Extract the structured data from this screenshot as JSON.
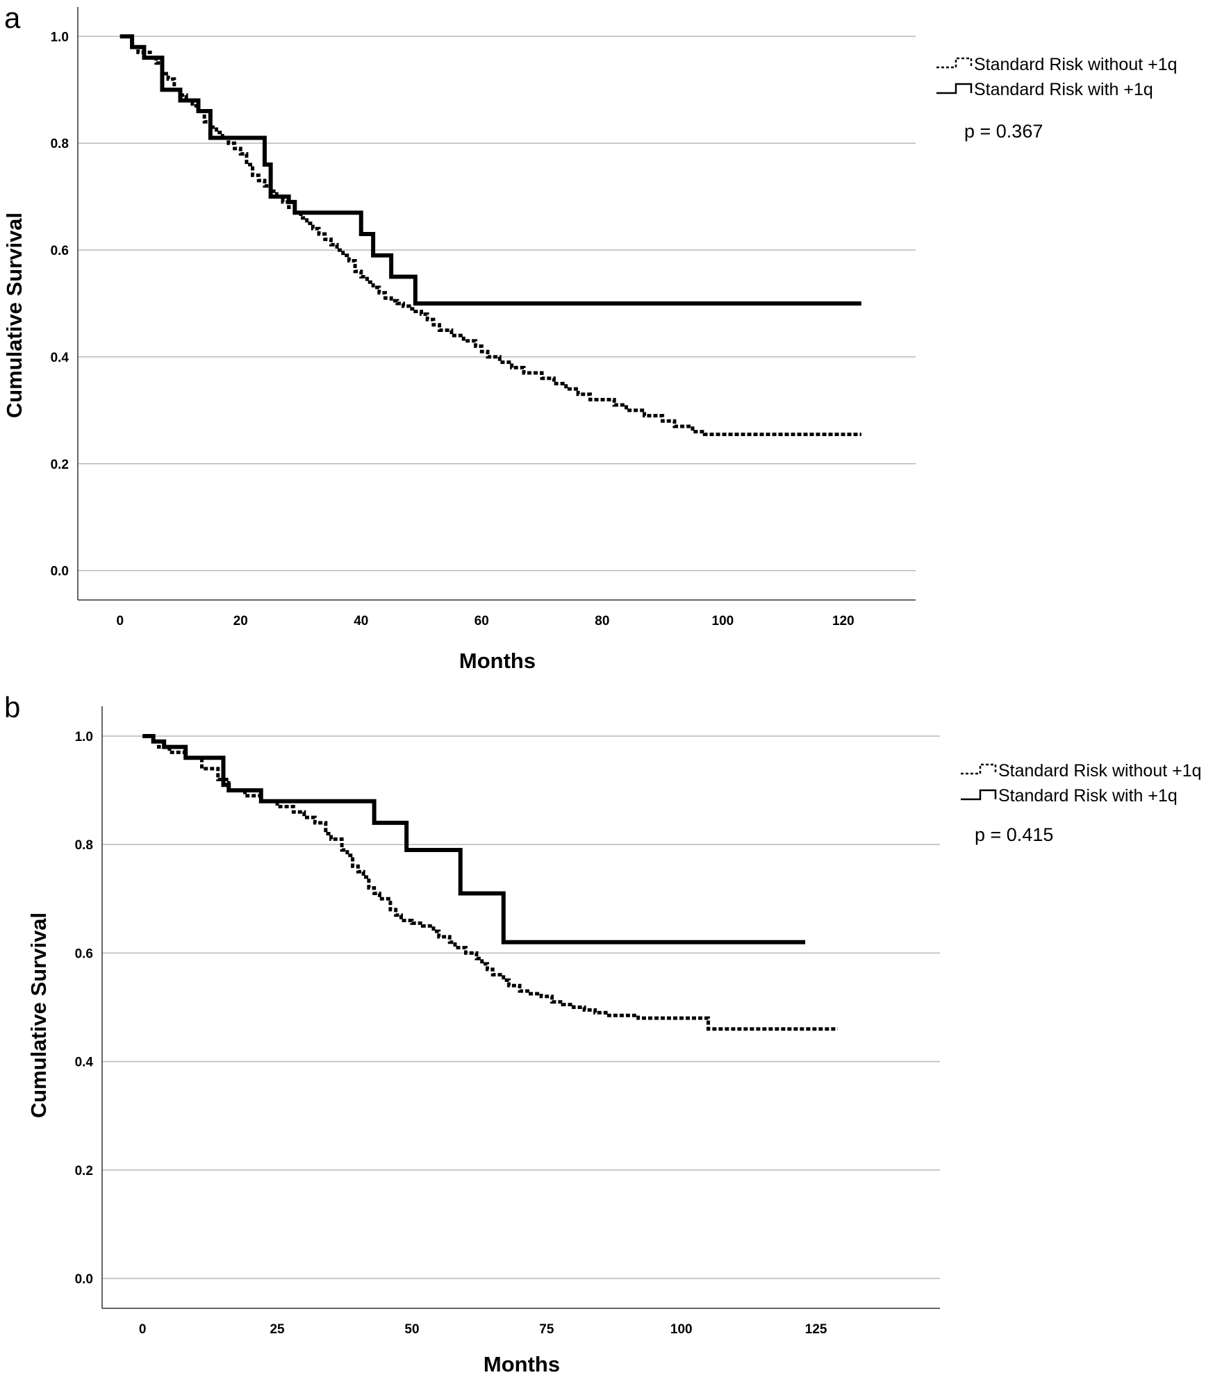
{
  "chart_data": [
    {
      "panel": "a",
      "type": "line",
      "xlabel": "Months",
      "ylabel": "Cumulative Survival",
      "xlim": [
        -7,
        132
      ],
      "ylim": [
        -0.055,
        1.055
      ],
      "xticks": [
        0,
        20,
        40,
        60,
        80,
        100,
        120
      ],
      "yticks": [
        0.0,
        0.2,
        0.4,
        0.6,
        0.8,
        1.0
      ],
      "ytick_labels": [
        "0.0",
        "0.2",
        "0.4",
        "0.6",
        "0.8",
        "1.0"
      ],
      "grid": "horizontal",
      "legend_position": "top-right outside plot",
      "annotation": "p = 0.367",
      "series": [
        {
          "name": "Standard Risk without +1q",
          "style": "dashed",
          "x": [
            0,
            2,
            3,
            5,
            6,
            7,
            8,
            9,
            10,
            11,
            12,
            13,
            14,
            15,
            16,
            17,
            18,
            19,
            20,
            21,
            22,
            23,
            24,
            25,
            26,
            27,
            28,
            29,
            30,
            31,
            32,
            33,
            34,
            35,
            36,
            37,
            38,
            39,
            40,
            41,
            42,
            43,
            44,
            45,
            46,
            47,
            48,
            49,
            50,
            51,
            52,
            53,
            55,
            57,
            59,
            60,
            61,
            63,
            65,
            67,
            70,
            72,
            74,
            76,
            78,
            82,
            84,
            87,
            90,
            92,
            95,
            97,
            123
          ],
          "y": [
            1.0,
            0.98,
            0.97,
            0.96,
            0.95,
            0.93,
            0.92,
            0.9,
            0.89,
            0.88,
            0.87,
            0.86,
            0.84,
            0.83,
            0.82,
            0.81,
            0.8,
            0.79,
            0.78,
            0.76,
            0.74,
            0.73,
            0.72,
            0.71,
            0.7,
            0.69,
            0.68,
            0.67,
            0.66,
            0.65,
            0.64,
            0.63,
            0.62,
            0.61,
            0.6,
            0.59,
            0.58,
            0.56,
            0.55,
            0.54,
            0.53,
            0.52,
            0.51,
            0.505,
            0.5,
            0.495,
            0.49,
            0.485,
            0.48,
            0.47,
            0.46,
            0.45,
            0.44,
            0.43,
            0.42,
            0.41,
            0.4,
            0.39,
            0.38,
            0.37,
            0.36,
            0.35,
            0.34,
            0.33,
            0.32,
            0.31,
            0.3,
            0.29,
            0.28,
            0.27,
            0.26,
            0.255,
            0.255
          ]
        },
        {
          "name": "Standard Risk with +1q",
          "style": "solid",
          "x": [
            0,
            2,
            4,
            7,
            10,
            13,
            15,
            23,
            24,
            25,
            28,
            29,
            39,
            40,
            42,
            45,
            49,
            123
          ],
          "y": [
            1.0,
            0.98,
            0.96,
            0.9,
            0.88,
            0.86,
            0.81,
            0.81,
            0.76,
            0.7,
            0.69,
            0.67,
            0.67,
            0.63,
            0.59,
            0.55,
            0.5,
            0.5
          ]
        }
      ]
    },
    {
      "panel": "b",
      "type": "line",
      "xlabel": "Months",
      "ylabel": "Cumulative Survival",
      "xlim": [
        -7.5,
        148
      ],
      "ylim": [
        -0.055,
        1.055
      ],
      "xticks": [
        0,
        25,
        50,
        75,
        100,
        125
      ],
      "yticks": [
        0.0,
        0.2,
        0.4,
        0.6,
        0.8,
        1.0
      ],
      "ytick_labels": [
        "0.0",
        "0.2",
        "0.4",
        "0.6",
        "0.8",
        "1.0"
      ],
      "grid": "horizontal",
      "legend_position": "top-right outside plot",
      "annotation": "p = 0.415",
      "series": [
        {
          "name": "Standard Risk without +1q",
          "style": "dashed",
          "x": [
            0,
            2,
            3,
            5,
            8,
            11,
            14,
            16,
            19,
            22,
            25,
            28,
            30,
            32,
            34,
            35,
            37,
            38,
            39,
            40,
            41,
            42,
            43,
            44,
            46,
            47,
            48,
            50,
            52,
            54,
            55,
            57,
            58,
            60,
            62,
            63,
            64,
            65,
            67,
            68,
            70,
            72,
            74,
            76,
            78,
            80,
            82,
            84,
            86,
            88,
            92,
            94,
            105,
            129
          ],
          "y": [
            1.0,
            0.99,
            0.98,
            0.97,
            0.96,
            0.94,
            0.92,
            0.9,
            0.89,
            0.88,
            0.87,
            0.86,
            0.85,
            0.84,
            0.82,
            0.81,
            0.79,
            0.78,
            0.76,
            0.75,
            0.74,
            0.72,
            0.71,
            0.7,
            0.68,
            0.67,
            0.66,
            0.655,
            0.65,
            0.64,
            0.63,
            0.62,
            0.61,
            0.6,
            0.59,
            0.58,
            0.57,
            0.56,
            0.55,
            0.54,
            0.53,
            0.525,
            0.52,
            0.51,
            0.505,
            0.5,
            0.495,
            0.49,
            0.485,
            0.485,
            0.48,
            0.48,
            0.46,
            0.46
          ]
        },
        {
          "name": "Standard Risk with +1q",
          "style": "solid",
          "x": [
            0,
            2,
            4,
            8,
            15,
            16,
            22,
            43,
            49,
            59,
            67,
            123
          ],
          "y": [
            1.0,
            0.99,
            0.98,
            0.96,
            0.91,
            0.9,
            0.88,
            0.84,
            0.79,
            0.71,
            0.62,
            0.62
          ]
        }
      ]
    }
  ]
}
